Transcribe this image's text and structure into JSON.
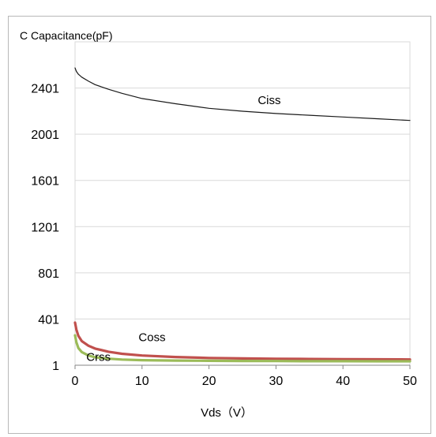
{
  "chart_data": {
    "type": "line",
    "title": "C Capacitance(pF)",
    "xlabel": "Vds（V）",
    "ylabel": "",
    "xlim": [
      0,
      50
    ],
    "ylim": [
      1,
      2801
    ],
    "x_ticks": [
      "0",
      "10",
      "20",
      "30",
      "40",
      "50"
    ],
    "y_ticks": [
      "1",
      "401",
      "801",
      "1201",
      "1601",
      "2001",
      "2401"
    ],
    "grid": true,
    "series": [
      {
        "name": "Ciss",
        "color": "#1a1a1a",
        "x": [
          0,
          0.2,
          0.5,
          1,
          2,
          3,
          5,
          7,
          10,
          15,
          20,
          25,
          30,
          35,
          40,
          45,
          50
        ],
        "y": [
          2575,
          2545,
          2520,
          2495,
          2460,
          2430,
          2390,
          2355,
          2310,
          2265,
          2225,
          2200,
          2180,
          2165,
          2150,
          2135,
          2120
        ]
      },
      {
        "name": "Coss",
        "color": "#c0504d",
        "x": [
          0,
          0.2,
          0.5,
          1,
          2,
          3,
          5,
          7,
          10,
          15,
          20,
          25,
          30,
          35,
          40,
          45,
          50
        ],
        "y": [
          370,
          310,
          255,
          210,
          170,
          145,
          118,
          100,
          85,
          72,
          64,
          60,
          57,
          55,
          53,
          52,
          51
        ]
      },
      {
        "name": "Crss",
        "color": "#9bbb59",
        "x": [
          0,
          0.2,
          0.5,
          1,
          2,
          3,
          5,
          7,
          10,
          15,
          20,
          25,
          30,
          35,
          40,
          45,
          50
        ],
        "y": [
          260,
          200,
          150,
          115,
          85,
          70,
          58,
          50,
          45,
          41,
          39,
          38,
          37,
          36,
          36,
          35,
          35
        ]
      }
    ],
    "annotations": [
      {
        "text": "Ciss",
        "series": "Ciss",
        "x": 29,
        "y": 2260
      },
      {
        "text": "Coss",
        "series": "Coss",
        "x": 11.5,
        "y": 210
      },
      {
        "text": "Crss",
        "series": "Crss",
        "x": 3.5,
        "y": 40
      }
    ]
  }
}
